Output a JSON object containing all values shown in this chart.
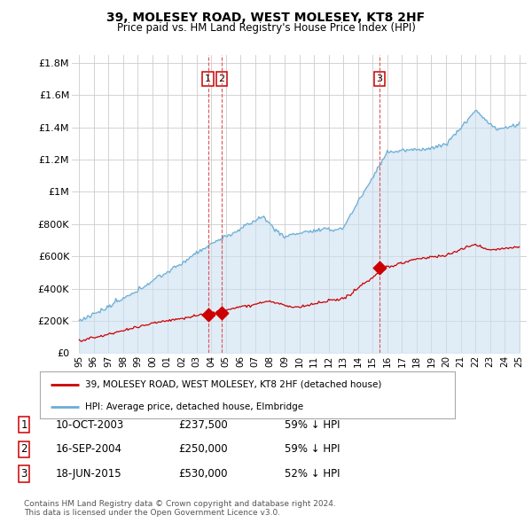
{
  "title": "39, MOLESEY ROAD, WEST MOLESEY, KT8 2HF",
  "subtitle": "Price paid vs. HM Land Registry's House Price Index (HPI)",
  "ylabel_ticks": [
    "£0",
    "£200K",
    "£400K",
    "£600K",
    "£800K",
    "£1M",
    "£1.2M",
    "£1.4M",
    "£1.6M",
    "£1.8M"
  ],
  "ytick_values": [
    0,
    200000,
    400000,
    600000,
    800000,
    1000000,
    1200000,
    1400000,
    1600000,
    1800000
  ],
  "ylim": [
    0,
    1850000
  ],
  "hpi_color": "#6baed6",
  "hpi_fill_color": "#cce0f0",
  "price_color": "#cc0000",
  "sale_marker_color": "#cc0000",
  "vline_color": "#dd4444",
  "background_color": "#ffffff",
  "grid_color": "#cccccc",
  "sales": [
    {
      "date_num": 2003.78,
      "price": 237500,
      "label": "1"
    },
    {
      "date_num": 2004.71,
      "price": 250000,
      "label": "2"
    },
    {
      "date_num": 2015.46,
      "price": 530000,
      "label": "3"
    }
  ],
  "sale_table": [
    {
      "num": "1",
      "date": "10-OCT-2003",
      "price": "£237,500",
      "hpi": "59% ↓ HPI"
    },
    {
      "num": "2",
      "date": "16-SEP-2004",
      "price": "£250,000",
      "hpi": "59% ↓ HPI"
    },
    {
      "num": "3",
      "date": "18-JUN-2015",
      "price": "£530,000",
      "hpi": "52% ↓ HPI"
    }
  ],
  "legend_entries": [
    "39, MOLESEY ROAD, WEST MOLESEY, KT8 2HF (detached house)",
    "HPI: Average price, detached house, Elmbridge"
  ],
  "footer": "Contains HM Land Registry data © Crown copyright and database right 2024.\nThis data is licensed under the Open Government Licence v3.0.",
  "xmin": 1994.5,
  "xmax": 2025.5
}
